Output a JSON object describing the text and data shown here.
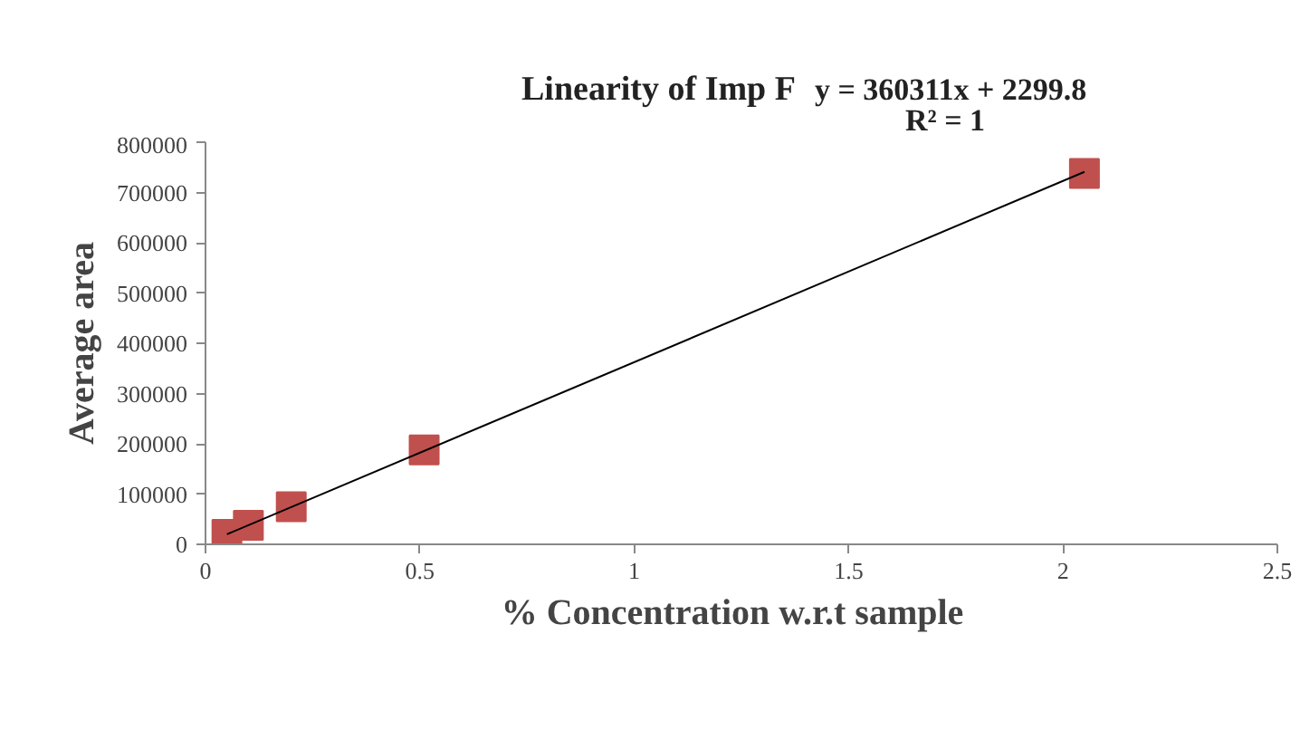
{
  "chart_data": {
    "type": "scatter",
    "title": "Linearity of Imp F",
    "xlabel": "% Concentration  w.r.t  sample",
    "ylabel": "Average area",
    "annotations": [
      "y = 360311x + 2299.8",
      "R² = 1"
    ],
    "series": [
      {
        "color": "#c0504d",
        "x": [
          0.05,
          0.1,
          0.2,
          0.51,
          2.05
        ],
        "values": [
          20000,
          38000,
          75000,
          188000,
          738000
        ],
        "marker": "square"
      },
      {
        "type": "line",
        "color": "#000000",
        "x": [
          0.05,
          2.05
        ],
        "values": [
          20000,
          741000
        ],
        "line_style": "solid"
      }
    ],
    "xlim": [
      0,
      2.5
    ],
    "xticks": [
      0,
      0.5,
      1,
      1.5,
      2,
      2.5
    ],
    "ylim": [
      0,
      800000
    ],
    "yticks": [
      0,
      100000,
      200000,
      300000,
      400000,
      500000,
      600000,
      700000,
      800000
    ],
    "grid": false
  }
}
